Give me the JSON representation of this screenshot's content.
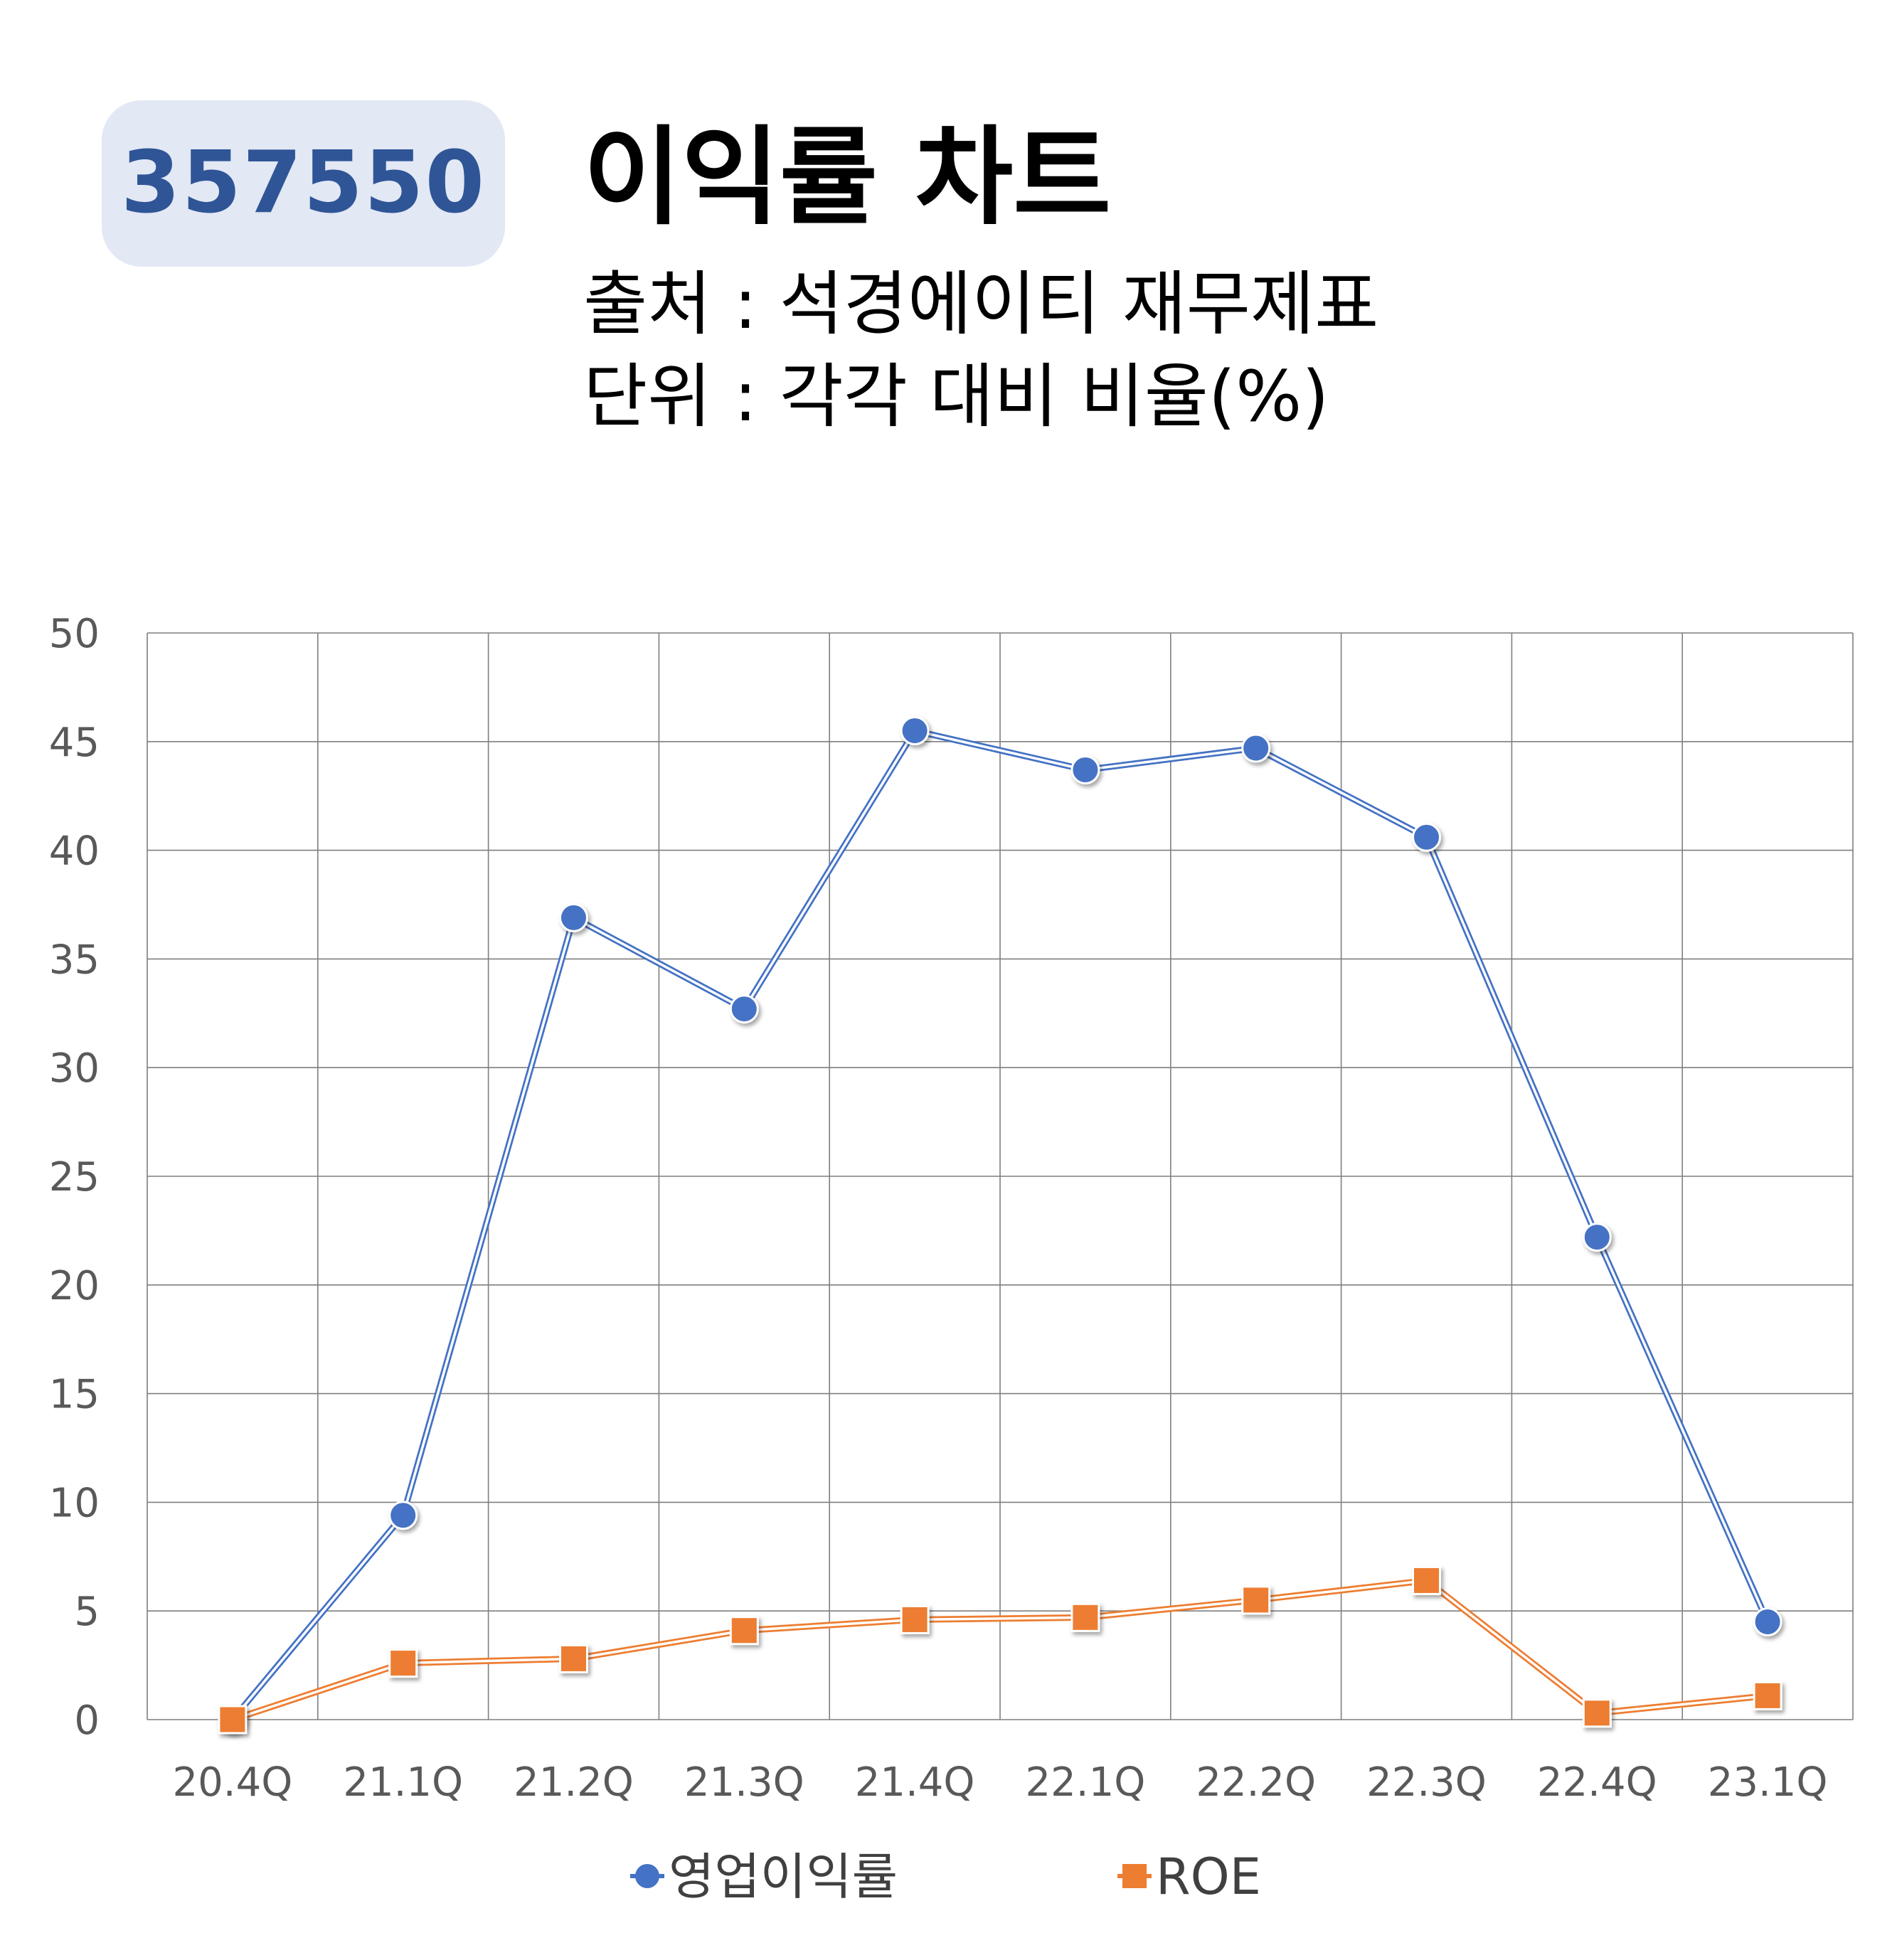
{
  "header": {
    "ticker": "357550",
    "title": "이익률 차트",
    "source": "출처 : 석경에이티 재무제표",
    "unit": "단위 : 각각 대비 비율(%)"
  },
  "colors": {
    "badge_bg": "#e2e8f4",
    "badge_text": "#2f5597",
    "series_operating_margin": "#4472c4",
    "series_roe": "#ed7d31",
    "grid": "#7f7f7f"
  },
  "chart_data": {
    "type": "line",
    "categories": [
      "20.4Q",
      "21.1Q",
      "21.2Q",
      "21.3Q",
      "21.4Q",
      "22.1Q",
      "22.2Q",
      "22.3Q",
      "22.4Q",
      "23.1Q"
    ],
    "y_ticks": [
      "0",
      "5",
      "10",
      "15",
      "20",
      "25",
      "30",
      "35",
      "40",
      "45",
      "50"
    ],
    "ylim": [
      0,
      50
    ],
    "grid": true,
    "legend_position": "bottom",
    "series": [
      {
        "name": "영업이익률",
        "marker": "circle",
        "values": [
          0,
          9.4,
          36.9,
          32.7,
          45.5,
          43.7,
          44.7,
          40.6,
          22.2,
          4.5
        ]
      },
      {
        "name": "ROE",
        "marker": "square",
        "values": [
          0,
          2.6,
          2.8,
          4.1,
          4.6,
          4.7,
          5.5,
          6.4,
          0.3,
          1.1
        ]
      }
    ]
  }
}
